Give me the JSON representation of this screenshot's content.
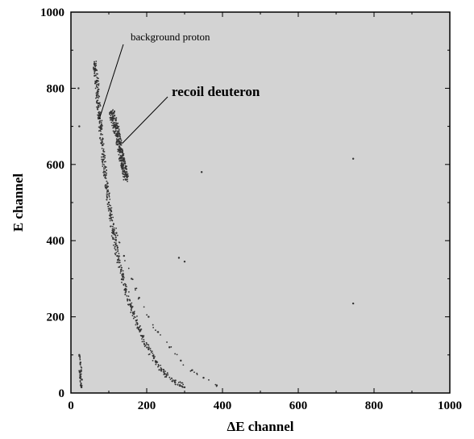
{
  "chart_data": {
    "type": "scatter",
    "xlabel": "ΔE channel",
    "ylabel": "E channel",
    "xlim": [
      0,
      1000
    ],
    "ylim": [
      0,
      1000
    ],
    "xticks": [
      "0",
      "200",
      "400",
      "600",
      "800",
      "1000"
    ],
    "yticks": [
      "0",
      "200",
      "400",
      "600",
      "800",
      "1000"
    ],
    "grid": false,
    "plot_background": "#d3d3d3",
    "point_color": "#333333",
    "annotations": [
      {
        "text": "background proton",
        "style": "normal",
        "points_to": [
          75,
          720
        ]
      },
      {
        "text": "recoil deuteron",
        "style": "bold",
        "points_to": [
          135,
          655
        ]
      }
    ],
    "series": [
      {
        "description_key": "proton_band",
        "points": [
          [
            62,
            865
          ],
          [
            65,
            850
          ],
          [
            68,
            820
          ],
          [
            70,
            790
          ],
          [
            72,
            760
          ],
          [
            75,
            730
          ],
          [
            78,
            700
          ],
          [
            82,
            660
          ],
          [
            86,
            620
          ],
          [
            90,
            580
          ],
          [
            95,
            540
          ],
          [
            100,
            500
          ],
          [
            106,
            460
          ],
          [
            112,
            420
          ],
          [
            118,
            390
          ],
          [
            125,
            350
          ],
          [
            135,
            310
          ],
          [
            145,
            270
          ],
          [
            158,
            230
          ],
          [
            172,
            190
          ],
          [
            188,
            150
          ],
          [
            205,
            115
          ],
          [
            225,
            80
          ],
          [
            248,
            50
          ],
          [
            275,
            28
          ],
          [
            300,
            15
          ]
        ]
      },
      {
        "description_key": "deuteron_band",
        "points": [
          [
            108,
            735
          ],
          [
            112,
            720
          ],
          [
            118,
            700
          ],
          [
            122,
            680
          ],
          [
            126,
            660
          ],
          [
            130,
            640
          ],
          [
            134,
            620
          ],
          [
            138,
            600
          ],
          [
            142,
            580
          ],
          [
            146,
            560
          ]
        ]
      },
      {
        "description_key": "faint_band",
        "points": [
          [
            105,
            480
          ],
          [
            120,
            420
          ],
          [
            140,
            360
          ],
          [
            160,
            300
          ],
          [
            180,
            250
          ],
          [
            205,
            200
          ],
          [
            230,
            160
          ],
          [
            260,
            120
          ],
          [
            290,
            85
          ],
          [
            320,
            60
          ],
          [
            350,
            40
          ],
          [
            385,
            20
          ]
        ]
      },
      {
        "description_key": "low_cluster",
        "points": [
          [
            22,
            100
          ],
          [
            25,
            80
          ],
          [
            27,
            60
          ],
          [
            24,
            40
          ],
          [
            26,
            20
          ],
          [
            28,
            15
          ],
          [
            23,
            55
          ],
          [
            29,
            35
          ]
        ]
      },
      {
        "description_key": "isolated",
        "points": [
          [
            345,
            580
          ],
          [
            745,
            615
          ],
          [
            745,
            235
          ],
          [
            285,
            355
          ],
          [
            300,
            345
          ],
          [
            20,
            800
          ],
          [
            22,
            700
          ]
        ]
      }
    ]
  }
}
